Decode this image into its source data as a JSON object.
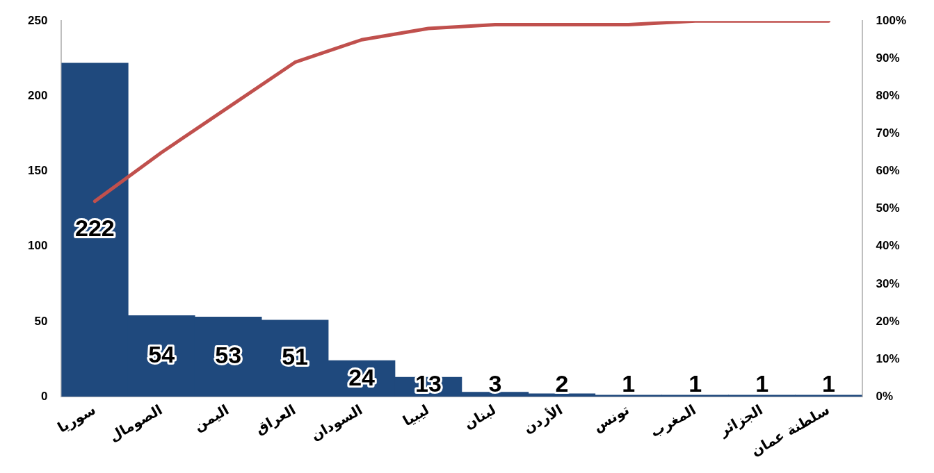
{
  "chart_data": {
    "type": "bar",
    "categories": [
      "سوريا",
      "الصومال",
      "اليمن",
      "العراق",
      "السودان",
      "ليبيا",
      "لبنان",
      "الأردن",
      "تونس",
      "المغرب",
      "الجزائر",
      "سلطنة عمان"
    ],
    "series": [
      {
        "color": "#1f497d",
        "values": [
          222,
          54,
          53,
          51,
          24,
          13,
          3,
          2,
          1,
          1,
          1,
          1
        ],
        "value_labels": [
          "222",
          "54",
          "53",
          "51",
          "24",
          "13",
          "3",
          "2",
          "1",
          "1",
          "1",
          "1"
        ]
      },
      {
        "type": "line",
        "axis": "y2",
        "color": "#c0504d",
        "values": [
          52,
          65,
          77,
          89,
          95,
          98,
          99,
          99,
          99,
          100,
          100,
          100
        ]
      }
    ],
    "ylim": [
      0,
      250
    ],
    "yticks": [
      0,
      50,
      100,
      150,
      200,
      250
    ],
    "y2lim": [
      0,
      100
    ],
    "y2ticks": [
      {
        "value": 0,
        "label": "0%"
      },
      {
        "value": 10,
        "label": "10%"
      },
      {
        "value": 20,
        "label": "20%"
      },
      {
        "value": 30,
        "label": "30%"
      },
      {
        "value": 40,
        "label": "40%"
      },
      {
        "value": 50,
        "label": "50%"
      },
      {
        "value": 60,
        "label": "60%"
      },
      {
        "value": 70,
        "label": "70%"
      },
      {
        "value": 80,
        "label": "80%"
      },
      {
        "value": 90,
        "label": "90%"
      },
      {
        "value": 100,
        "label": "100%"
      }
    ],
    "grid": false,
    "legend": false,
    "marker": "none",
    "line_style": "solid"
  }
}
